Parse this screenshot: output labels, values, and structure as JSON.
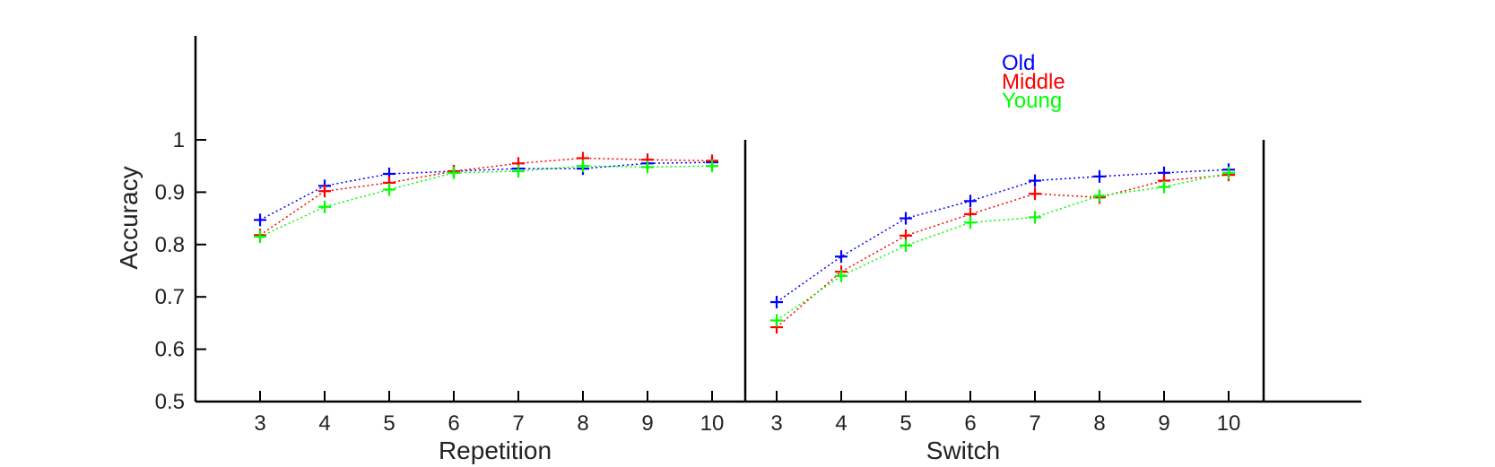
{
  "chart_data": {
    "type": "line",
    "ylabel": "Accuracy",
    "ylim": [
      0.5,
      1.0
    ],
    "yticks": [
      "0.5",
      "0.6",
      "0.7",
      "0.8",
      "0.9",
      "1"
    ],
    "ytick_values": [
      0.5,
      0.6,
      0.7,
      0.8,
      0.9,
      1.0
    ],
    "panels": [
      {
        "xlabel": "Repetition",
        "categories": [
          "3",
          "4",
          "5",
          "6",
          "7",
          "8",
          "9",
          "10"
        ]
      },
      {
        "xlabel": "Switch",
        "categories": [
          "3",
          "4",
          "5",
          "6",
          "7",
          "8",
          "9",
          "10"
        ]
      }
    ],
    "legend_position": "top-right",
    "series": [
      {
        "name": "Old",
        "color": "#0000ff",
        "repetition": [
          0.847,
          0.912,
          0.935,
          0.94,
          0.945,
          0.945,
          0.955,
          0.957
        ],
        "switch": [
          0.69,
          0.777,
          0.85,
          0.883,
          0.922,
          0.93,
          0.937,
          0.943
        ]
      },
      {
        "name": "Middle",
        "color": "#ff0000",
        "repetition": [
          0.818,
          0.902,
          0.918,
          0.94,
          0.955,
          0.965,
          0.962,
          0.96
        ],
        "switch": [
          0.642,
          0.748,
          0.817,
          0.858,
          0.897,
          0.89,
          0.922,
          0.933
        ]
      },
      {
        "name": "Young",
        "color": "#00ff00",
        "repetition": [
          0.815,
          0.872,
          0.905,
          0.937,
          0.94,
          0.95,
          0.948,
          0.95
        ],
        "switch": [
          0.655,
          0.74,
          0.798,
          0.842,
          0.852,
          0.893,
          0.91,
          0.937
        ]
      }
    ]
  }
}
